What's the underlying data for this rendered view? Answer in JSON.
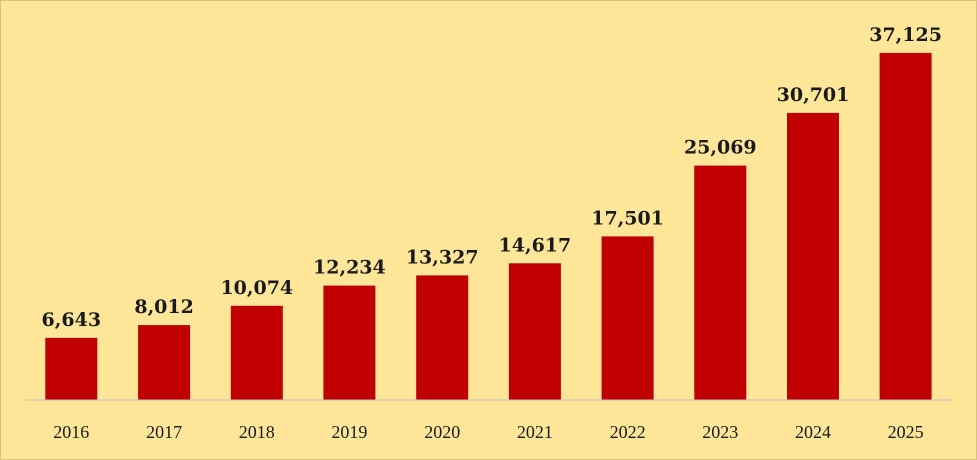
{
  "chart_data": {
    "type": "bar",
    "title": "",
    "xlabel": "",
    "ylabel": "",
    "categories": [
      "2016",
      "2017",
      "2018",
      "2019",
      "2020",
      "2021",
      "2022",
      "2023",
      "2024",
      "2025"
    ],
    "values": [
      6643,
      8012,
      10074,
      12234,
      13327,
      14617,
      17501,
      25069,
      30701,
      37125
    ],
    "value_labels": [
      "6,643",
      "8,012",
      "10,074",
      "12,234",
      "13,327",
      "14,617",
      "17,501",
      "25,069",
      "30,701",
      "37,125"
    ],
    "ylim": [
      0,
      40000
    ],
    "grid": false,
    "legend": "none",
    "colors": {
      "bar": "#c00000",
      "background": "#ffe699",
      "axis": "#bfbfbf",
      "text": "#1a1a1a"
    }
  }
}
